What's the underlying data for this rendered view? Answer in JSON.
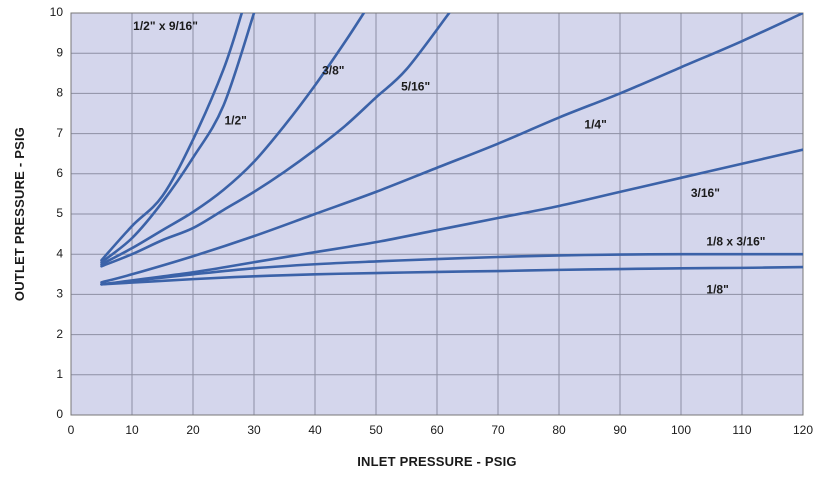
{
  "chart_data": {
    "type": "line",
    "title": "",
    "xlabel": "INLET PRESSURE - PSIG",
    "ylabel": "OUTLET PRESSURE - PSIG",
    "xlim": [
      0,
      120
    ],
    "ylim": [
      0,
      10
    ],
    "xticks": [
      0,
      10,
      20,
      30,
      40,
      50,
      60,
      70,
      80,
      90,
      100,
      110,
      120
    ],
    "yticks": [
      0,
      1,
      2,
      3,
      4,
      5,
      6,
      7,
      8,
      9,
      10
    ],
    "grid": true,
    "legend": "none",
    "colors": {
      "plot_background": "#d4d6ec",
      "grid": "#8d8fa3",
      "line": "#3b62a8",
      "frame": "#777777"
    },
    "series": [
      {
        "name": "1/2\" x 9/16\"",
        "points": [
          [
            5,
            3.85
          ],
          [
            10,
            4.7
          ],
          [
            15,
            5.45
          ],
          [
            20,
            6.85
          ],
          [
            25,
            8.6
          ],
          [
            28,
            10.0
          ]
        ]
      },
      {
        "name": "1/2\"",
        "points": [
          [
            5,
            3.8
          ],
          [
            10,
            4.4
          ],
          [
            15,
            5.3
          ],
          [
            20,
            6.4
          ],
          [
            25,
            7.7
          ],
          [
            30,
            10.0
          ]
        ]
      },
      {
        "name": "3/8\"",
        "points": [
          [
            5,
            3.75
          ],
          [
            10,
            4.15
          ],
          [
            15,
            4.6
          ],
          [
            20,
            5.05
          ],
          [
            25,
            5.6
          ],
          [
            30,
            6.3
          ],
          [
            35,
            7.2
          ],
          [
            40,
            8.2
          ],
          [
            45,
            9.3
          ],
          [
            48,
            10.0
          ]
        ]
      },
      {
        "name": "5/16\"",
        "points": [
          [
            5,
            3.7
          ],
          [
            10,
            4.0
          ],
          [
            15,
            4.35
          ],
          [
            20,
            4.65
          ],
          [
            25,
            5.1
          ],
          [
            30,
            5.55
          ],
          [
            35,
            6.05
          ],
          [
            40,
            6.6
          ],
          [
            45,
            7.2
          ],
          [
            50,
            7.9
          ],
          [
            55,
            8.6
          ],
          [
            62,
            10.0
          ]
        ]
      },
      {
        "name": "1/4\"",
        "points": [
          [
            5,
            3.3
          ],
          [
            10,
            3.5
          ],
          [
            20,
            3.95
          ],
          [
            30,
            4.45
          ],
          [
            40,
            5.0
          ],
          [
            50,
            5.55
          ],
          [
            60,
            6.15
          ],
          [
            70,
            6.75
          ],
          [
            80,
            7.4
          ],
          [
            90,
            8.0
          ],
          [
            100,
            8.65
          ],
          [
            110,
            9.3
          ],
          [
            120,
            10.0
          ]
        ]
      },
      {
        "name": "3/16\"",
        "points": [
          [
            5,
            3.25
          ],
          [
            20,
            3.55
          ],
          [
            30,
            3.8
          ],
          [
            40,
            4.05
          ],
          [
            50,
            4.3
          ],
          [
            60,
            4.6
          ],
          [
            70,
            4.9
          ],
          [
            80,
            5.2
          ],
          [
            90,
            5.55
          ],
          [
            100,
            5.9
          ],
          [
            110,
            6.25
          ],
          [
            120,
            6.6
          ]
        ]
      },
      {
        "name": "1/8 x 3/16\"",
        "points": [
          [
            5,
            3.25
          ],
          [
            20,
            3.5
          ],
          [
            30,
            3.65
          ],
          [
            40,
            3.75
          ],
          [
            50,
            3.82
          ],
          [
            60,
            3.88
          ],
          [
            70,
            3.93
          ],
          [
            80,
            3.97
          ],
          [
            90,
            3.99
          ],
          [
            100,
            4.0
          ],
          [
            110,
            4.0
          ],
          [
            120,
            4.0
          ]
        ]
      },
      {
        "name": "1/8\"",
        "points": [
          [
            5,
            3.25
          ],
          [
            20,
            3.38
          ],
          [
            30,
            3.45
          ],
          [
            40,
            3.5
          ],
          [
            50,
            3.53
          ],
          [
            60,
            3.56
          ],
          [
            70,
            3.58
          ],
          [
            80,
            3.61
          ],
          [
            90,
            3.63
          ],
          [
            100,
            3.65
          ],
          [
            110,
            3.66
          ],
          [
            120,
            3.68
          ]
        ]
      }
    ],
    "annotations": [
      {
        "series": "1/2\" x 9/16\"",
        "text": "1/2\" x 9/16\"",
        "x": 15.5,
        "y": 9.65
      },
      {
        "series": "1/2\"",
        "text": "1/2\"",
        "x": 27,
        "y": 7.3
      },
      {
        "series": "3/8\"",
        "text": "3/8\"",
        "x": 43,
        "y": 8.55
      },
      {
        "series": "5/16\"",
        "text": "5/16\"",
        "x": 56.5,
        "y": 8.15
      },
      {
        "series": "1/4\"",
        "text": "1/4\"",
        "x": 86,
        "y": 7.2
      },
      {
        "series": "3/16\"",
        "text": "3/16\"",
        "x": 104,
        "y": 5.5
      },
      {
        "series": "1/8 x 3/16\"",
        "text": "1/8  x 3/16\"",
        "x": 109,
        "y": 4.3
      },
      {
        "series": "1/8\"",
        "text": "1/8\"",
        "x": 106,
        "y": 3.1
      }
    ]
  }
}
